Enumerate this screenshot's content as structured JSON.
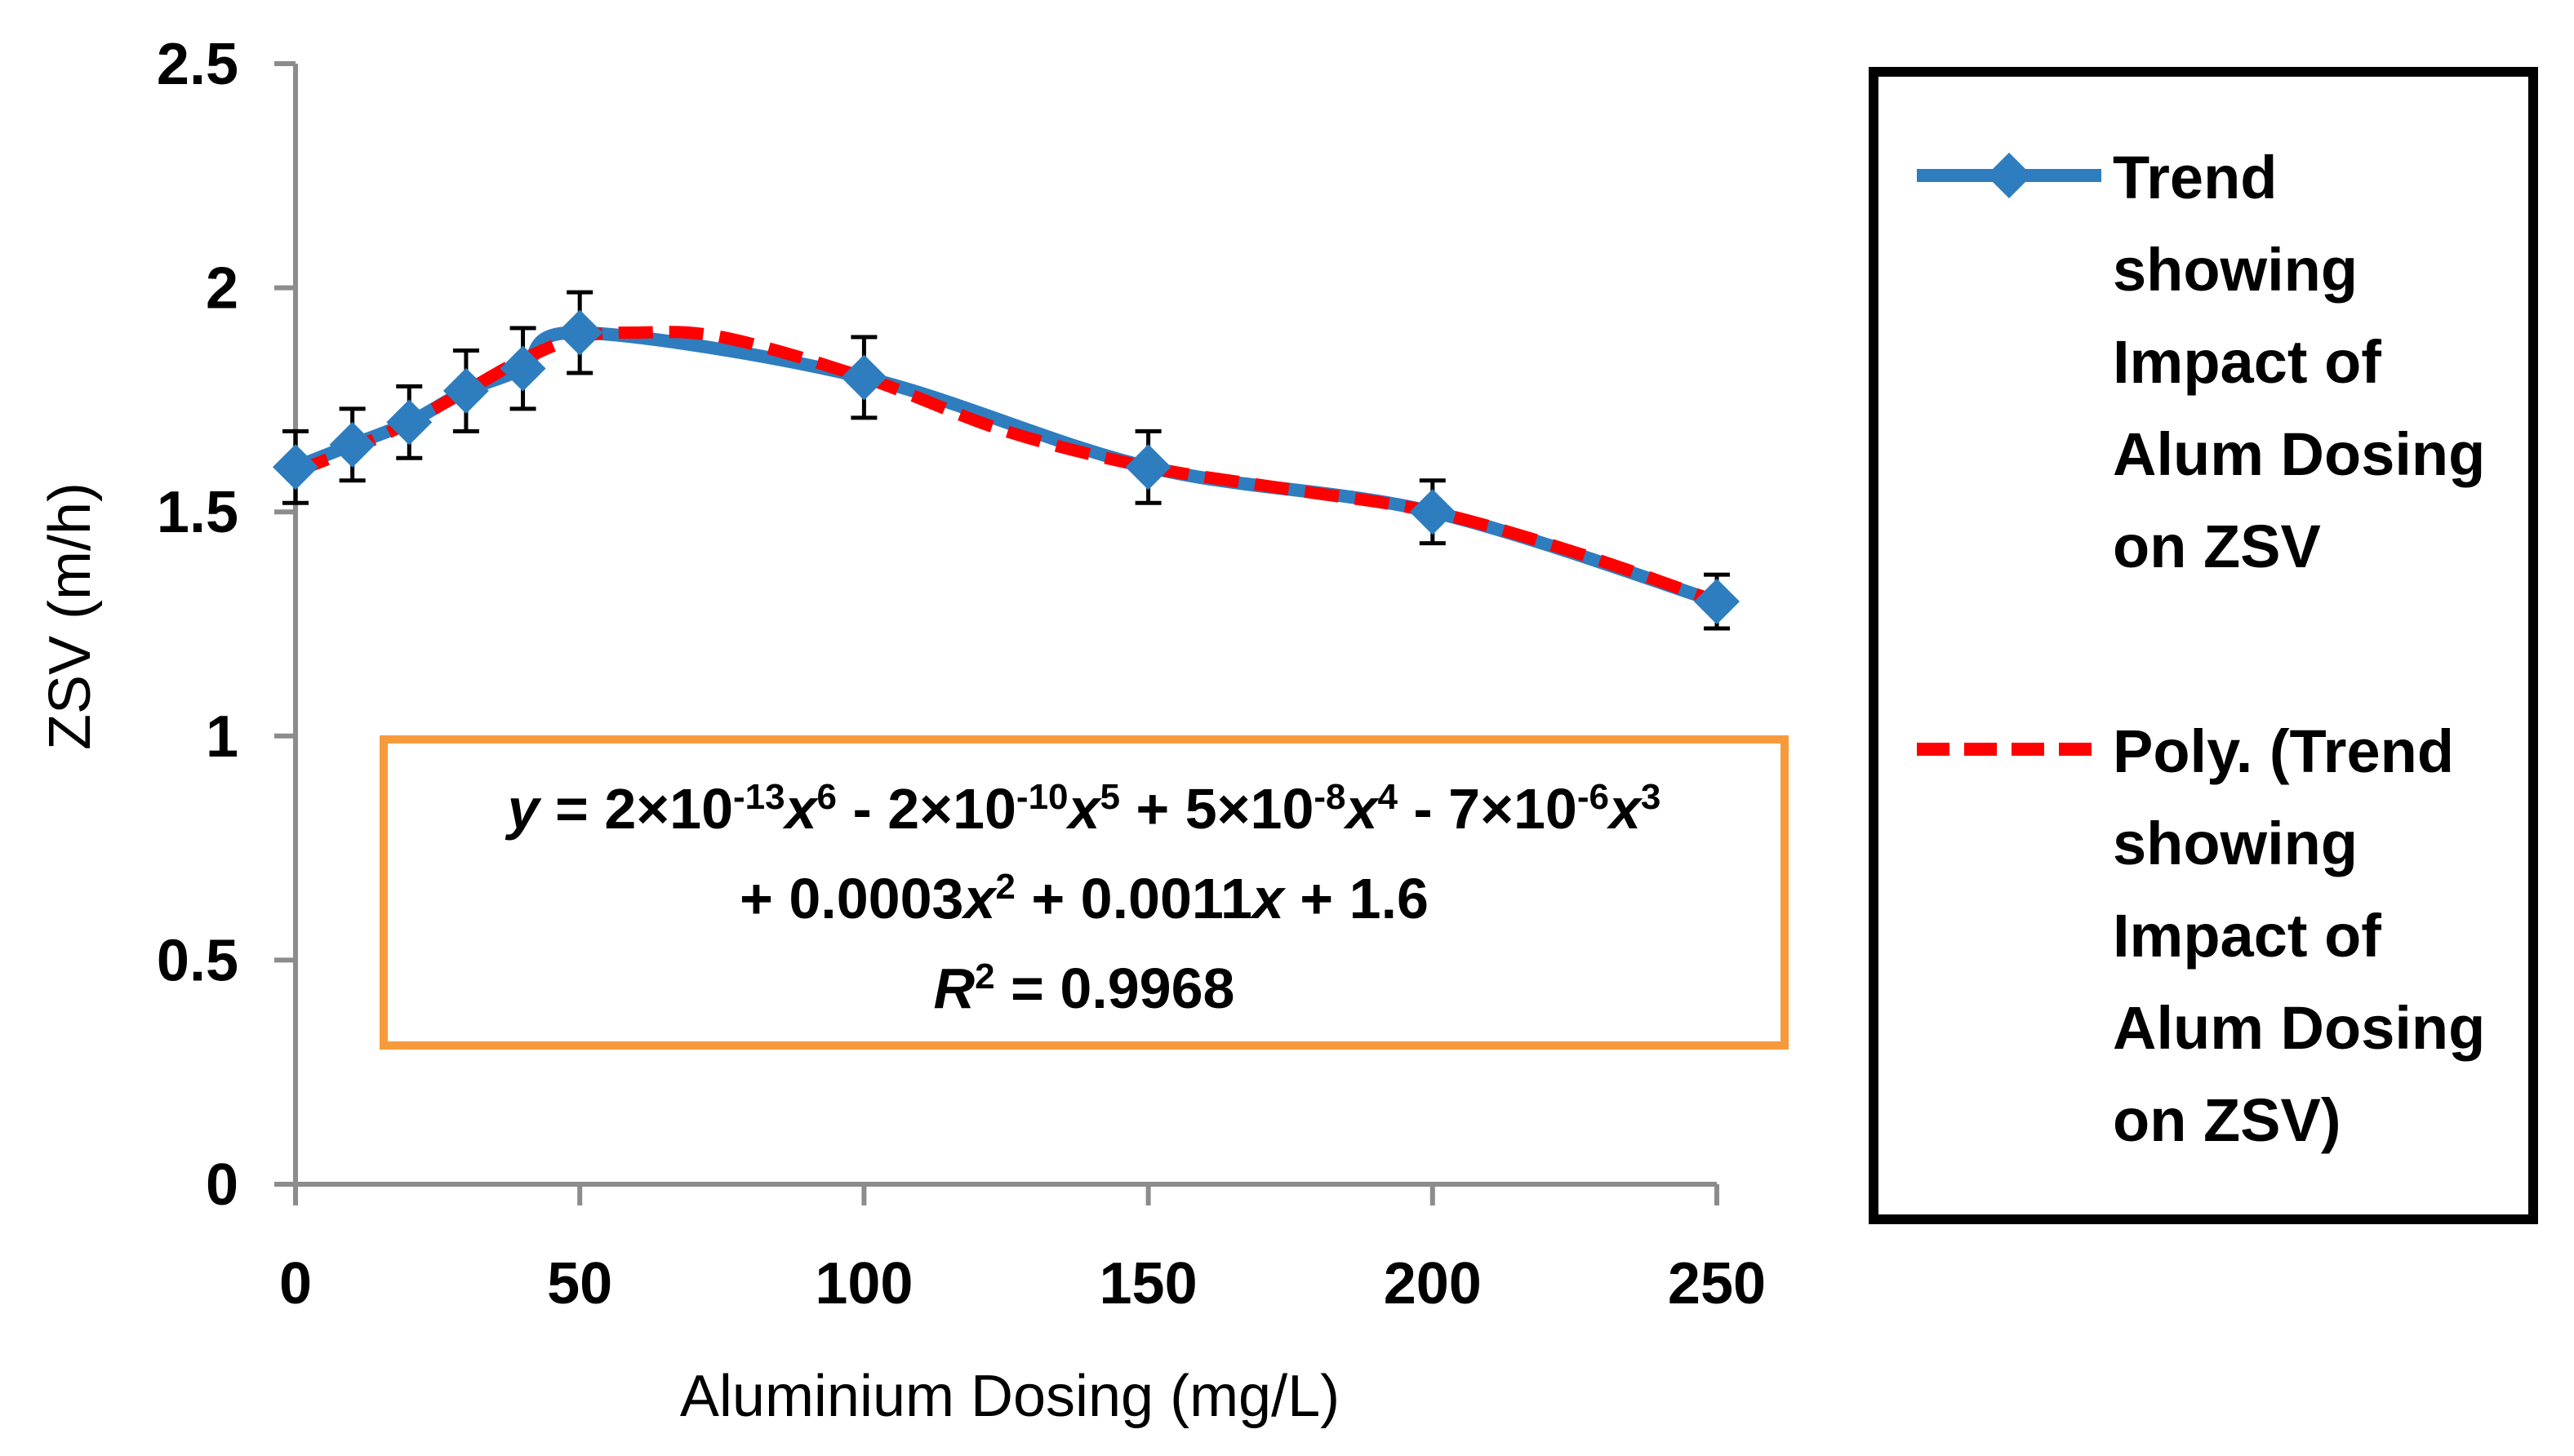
{
  "chart_data": {
    "type": "line",
    "title": "",
    "xlabel": "Aluminium Dosing (mg/L)",
    "ylabel": "ZSV (m/h)",
    "xlim": [
      0,
      250
    ],
    "ylim": [
      0,
      2.5
    ],
    "x_ticks": [
      "0",
      "50",
      "100",
      "150",
      "200",
      "250"
    ],
    "y_ticks": [
      "0",
      "0.5",
      "1",
      "1.5",
      "2",
      "2.5"
    ],
    "grid": false,
    "series": [
      {
        "name": "Trend showing Impact of Alum Dosing on ZSV",
        "color": "#2E7DBF",
        "marker": "diamond",
        "x": [
          0,
          10,
          20,
          30,
          40,
          50,
          100,
          150,
          200,
          250
        ],
        "values": [
          1.6,
          1.65,
          1.7,
          1.77,
          1.82,
          1.9,
          1.8,
          1.6,
          1.5,
          1.3
        ],
        "error": [
          0.08,
          0.08,
          0.08,
          0.09,
          0.09,
          0.09,
          0.09,
          0.08,
          0.07,
          0.06
        ]
      },
      {
        "name": "Poly. (Trend showing Impact of Alum Dosing on ZSV)",
        "color": "#FF0000",
        "style": "dashed",
        "x": [
          0,
          10,
          20,
          30,
          40,
          50,
          60,
          75,
          100,
          125,
          150,
          175,
          200,
          225,
          250
        ],
        "values": [
          1.59,
          1.64,
          1.7,
          1.77,
          1.84,
          1.89,
          1.9,
          1.89,
          1.8,
          1.68,
          1.6,
          1.55,
          1.5,
          1.41,
          1.3
        ]
      }
    ],
    "annotation": {
      "line1_parts": [
        "y",
        " = 2×10",
        "-13",
        "x",
        "6",
        " - 2×10",
        "-10",
        "x",
        "5",
        " + 5×10",
        "-8",
        "x",
        "4",
        " - 7×10",
        "-6",
        "x",
        "3"
      ],
      "line2_parts": [
        "+ 0.0003",
        "x",
        "2",
        " + 0.0011",
        "x",
        " + 1.6"
      ],
      "line3_parts": [
        "R",
        "2",
        " = 0.9968"
      ],
      "border_color": "#F79A3C"
    },
    "legend": {
      "position": "right",
      "entries": [
        {
          "lines": [
            "Trend",
            "showing",
            "Impact of",
            "Alum Dosing",
            "on ZSV"
          ]
        },
        {
          "lines": [
            "Poly. (Trend",
            "showing",
            "Impact of",
            "Alum Dosing",
            "on ZSV)"
          ]
        }
      ]
    }
  }
}
